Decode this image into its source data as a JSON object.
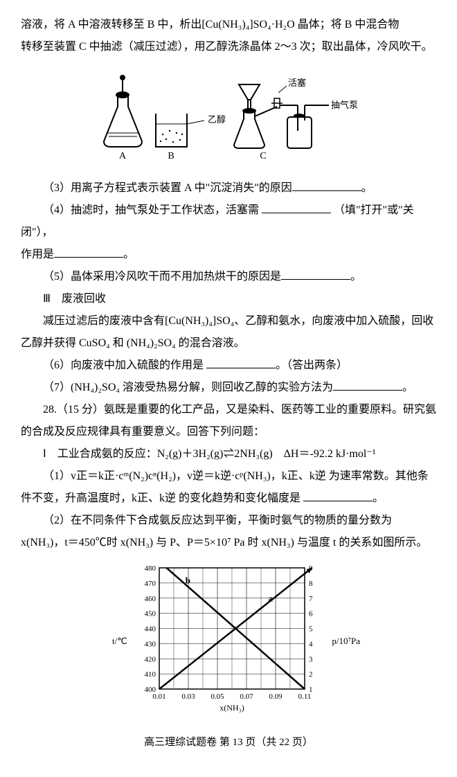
{
  "intro": {
    "line1": "溶液，将 A 中溶液转移至 B 中，析出[Cu(NH₃)₄]SO₄·H₂O 晶体；将 B 中混合物",
    "line2": "转移至装置 C 中抽滤（减压过滤），用乙醇洗涤晶体 2～3 次；取出晶体，冷风吹干。"
  },
  "apparatus": {
    "labels": {
      "a": "A",
      "b": "B",
      "c": "C",
      "ethanol": "乙醇",
      "stopcock": "活塞",
      "pump": "抽气泵"
    }
  },
  "q3": {
    "text_a": "（3）用离子方程式表示装置 A 中\"沉淀消失\"的原因",
    "text_b": "。"
  },
  "q4": {
    "text_a": "（4）抽滤时，抽气泵处于工作状态，活塞需",
    "text_b": "（填\"打开\"或\"关闭\"），",
    "text_c": "作用是",
    "text_d": "。"
  },
  "q5": {
    "text_a": "（5）晶体采用冷风吹干而不用加热烘干的原因是",
    "text_b": "。"
  },
  "section3": {
    "header": "Ⅲ　废液回收",
    "body": "减压过滤后的废液中含有[Cu(NH₃)₄]SO₄、乙醇和氨水，向废液中加入硫酸，回收乙醇并获得 CuSO₄ 和 (NH₄)₂SO₄ 的混合溶液。"
  },
  "q6": {
    "text_a": "（6）向废液中加入硫酸的作用是",
    "text_b": "。（答出两条）"
  },
  "q7": {
    "text_a": "（7）(NH₄)₂SO₄ 溶液受热易分解，则回收乙醇的实验方法为",
    "text_b": "。"
  },
  "q28": {
    "intro": "28.（15 分）氨既是重要的化工产品，又是染料、医药等工业的重要原料。研究氨的合成及反应规律具有重要意义。回答下列问题：",
    "part1_header": "Ⅰ　工业合成氨的反应：N₂(g)＋3H₂(g)⇌2NH₃(g)　ΔH＝-92.2 kJ·mol⁻¹",
    "sub1_a": "（1）v正＝k正·cᵐ(N₂)cⁿ(H₂)，v逆＝k逆·cᵖ(NH₃)，k正、k逆 为速率常数。其他条件不变，升高温度时，k正、k逆 的变化趋势和变化幅度是",
    "sub1_b": "。",
    "sub2": "（2）在不同条件下合成氨反应达到平衡，平衡时氨气的物质的量分数为 x(NH₃)，t＝450℃时 x(NH₃) 与 P、P＝5×10⁷ Pa 时 x(NH₃) 与温度 t 的关系如图所示。"
  },
  "chart": {
    "type": "line",
    "x_label": "x(NH₃)",
    "y_left_label": "t/℃",
    "y_right_label": "p/10⁷Pa",
    "x_ticks": [
      "0.01",
      "0.03",
      "0.05",
      "0.07",
      "0.09",
      "0.11"
    ],
    "y_left_ticks": [
      "400",
      "410",
      "420",
      "430",
      "440",
      "450",
      "460",
      "470",
      "480"
    ],
    "y_right_ticks": [
      "1",
      "2",
      "3",
      "4",
      "5",
      "6",
      "7",
      "8",
      "9"
    ],
    "series_a": {
      "label": "a",
      "points": [
        [
          0.01,
          1
        ],
        [
          0.115,
          9
        ]
      ],
      "color": "#000000"
    },
    "series_b": {
      "label": "b",
      "points": [
        [
          0.015,
          480
        ],
        [
          0.11,
          400
        ]
      ],
      "color": "#000000"
    },
    "grid_color": "#000000",
    "background": "#ffffff",
    "line_width": 2.5,
    "axis_fontsize": 11
  },
  "footer": "高三理综试题卷 第 13 页（共 22 页）"
}
